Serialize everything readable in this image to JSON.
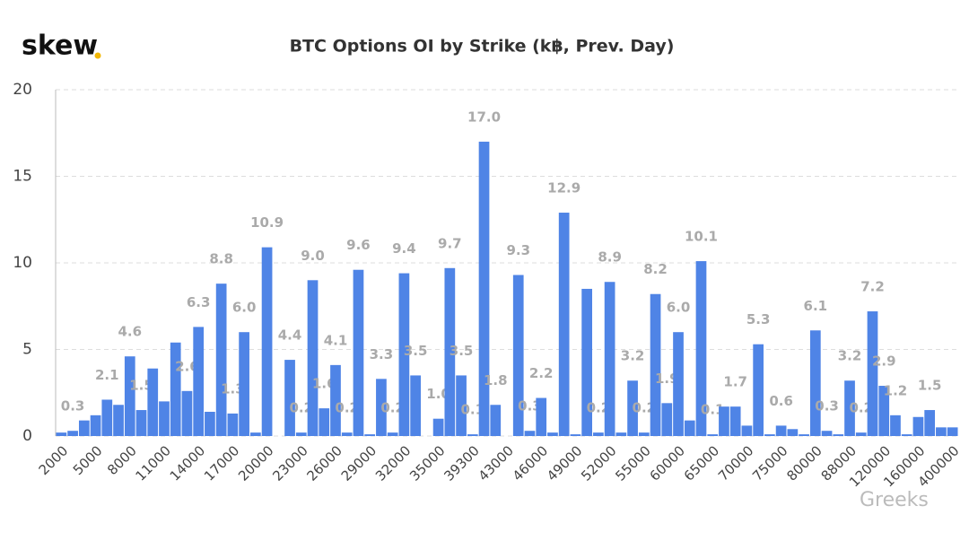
{
  "logo": "skew",
  "watermark": "Greeks",
  "chart_data": {
    "type": "bar",
    "title": "BTC Options OI by Strike (k฿, Prev. Day)",
    "categories": [
      "2000",
      null,
      null,
      "5000",
      null,
      null,
      "8000",
      null,
      null,
      "11000",
      null,
      null,
      "14000",
      null,
      null,
      "17000",
      null,
      null,
      "20000",
      null,
      null,
      "23000",
      null,
      null,
      "26000",
      null,
      null,
      "29000",
      null,
      null,
      "32000",
      null,
      null,
      "35000",
      null,
      null,
      "39300",
      null,
      null,
      "43000",
      null,
      null,
      "46000",
      null,
      null,
      "49000",
      null,
      null,
      "52000",
      null,
      null,
      "55000",
      null,
      null,
      "60000",
      null,
      null,
      "65000",
      null,
      null,
      "70000",
      null,
      null,
      "75000",
      null,
      null,
      "80000",
      null,
      null,
      "88000",
      null,
      null,
      "120000",
      null,
      null,
      "160000",
      null,
      null,
      "400000"
    ],
    "values": [
      0.2,
      0.3,
      0.9,
      1.2,
      2.1,
      1.8,
      4.6,
      1.5,
      3.9,
      2.0,
      5.4,
      2.6,
      6.3,
      1.4,
      8.8,
      1.3,
      6.0,
      0.2,
      10.9,
      0.0,
      4.4,
      0.2,
      9.0,
      1.6,
      4.1,
      0.2,
      9.6,
      0.1,
      3.3,
      0.2,
      9.4,
      3.5,
      0.0,
      1.0,
      9.7,
      3.5,
      0.1,
      17.0,
      1.8,
      0.0,
      9.3,
      0.3,
      2.2,
      0.2,
      12.9,
      0.1,
      8.5,
      0.2,
      8.9,
      0.2,
      3.2,
      0.2,
      8.2,
      1.9,
      6.0,
      0.9,
      10.1,
      0.1,
      1.7,
      1.7,
      0.6,
      5.3,
      0.1,
      0.6,
      0.4,
      0.1,
      6.1,
      0.3,
      0.1,
      3.2,
      0.2,
      7.2,
      2.9,
      1.2,
      0.1,
      1.1,
      1.5,
      0.5,
      0.5
    ],
    "value_labels": [
      null,
      "0.3",
      null,
      null,
      "2.1",
      null,
      "4.6",
      "1.5",
      null,
      null,
      null,
      "2.6",
      "6.3",
      null,
      "8.8",
      "1.3",
      "6.0",
      null,
      "10.9",
      null,
      "4.4",
      "0.2",
      "9.0",
      "1.6",
      "4.1",
      "0.2",
      "9.6",
      null,
      "3.3",
      "0.2",
      "9.4",
      "3.5",
      null,
      "1.0",
      "9.7",
      "3.5",
      "0.1",
      "17.0",
      "1.8",
      null,
      "9.3",
      "0.3",
      "2.2",
      null,
      "12.9",
      null,
      null,
      "0.2",
      "8.9",
      null,
      "3.2",
      "0.2",
      "8.2",
      "1.9",
      "6.0",
      null,
      "10.1",
      "0.1",
      null,
      "1.7",
      null,
      "5.3",
      null,
      "0.6",
      null,
      null,
      "6.1",
      "0.3",
      null,
      "3.2",
      "0.2",
      "7.2",
      "2.9",
      "1.2",
      null,
      null,
      "1.5",
      null,
      null
    ],
    "color": "#4f84e6",
    "ylim": [
      0,
      20
    ],
    "yticks": [
      0,
      5,
      10,
      15,
      20
    ],
    "grid": true
  }
}
